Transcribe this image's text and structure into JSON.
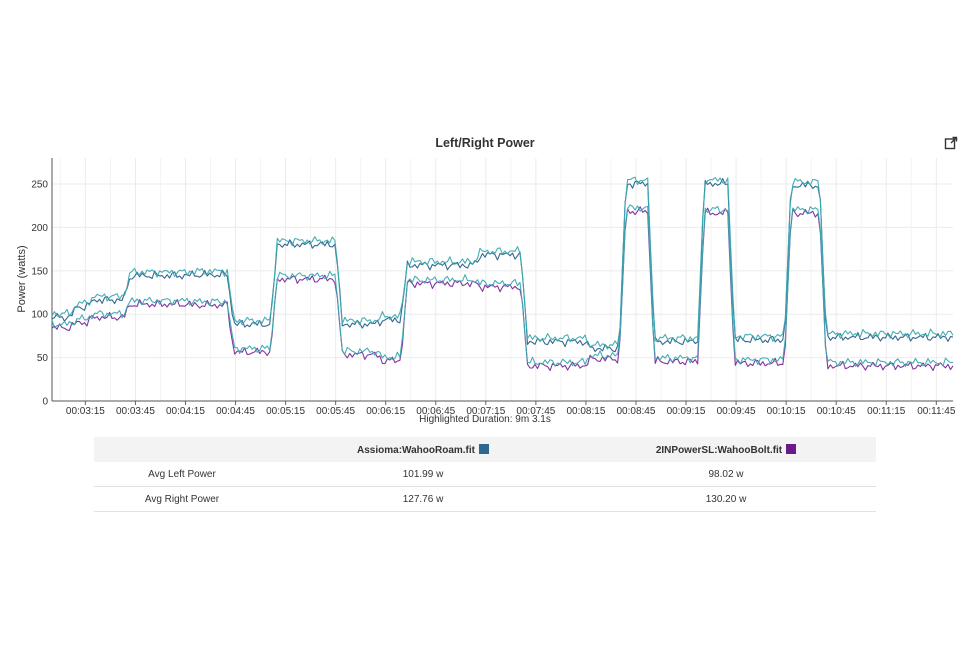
{
  "chart_data": {
    "type": "line",
    "title": "Left/Right Power",
    "ylabel": "Power (watts)",
    "xlabel": "",
    "ylim": [
      0,
      280
    ],
    "yticks": [
      0,
      50,
      100,
      150,
      200,
      250
    ],
    "x_tick_labels": [
      "00:03:15",
      "00:03:45",
      "00:04:15",
      "00:04:45",
      "00:05:15",
      "00:05:45",
      "00:06:15",
      "00:06:45",
      "00:07:15",
      "00:07:45",
      "00:08:15",
      "00:08:45",
      "00:09:15",
      "00:09:45",
      "00:10:15",
      "00:10:45",
      "00:11:15",
      "00:11:45"
    ],
    "x_range_seconds": [
      175,
      715
    ],
    "grid": true,
    "segments": [
      {
        "start": 175,
        "end": 186,
        "high": 98,
        "low": 86
      },
      {
        "start": 186,
        "end": 196,
        "high": 110,
        "low": 92
      },
      {
        "start": 196,
        "end": 218,
        "high": 118,
        "low": 98
      },
      {
        "start": 218,
        "end": 256,
        "high": 146,
        "low": 113
      },
      {
        "start": 256,
        "end": 280,
        "high": 147,
        "low": 112
      },
      {
        "start": 280,
        "end": 306,
        "high": 90,
        "low": 58
      },
      {
        "start": 306,
        "end": 345,
        "high": 182,
        "low": 142
      },
      {
        "start": 345,
        "end": 369,
        "high": 90,
        "low": 55
      },
      {
        "start": 369,
        "end": 384,
        "high": 95,
        "low": 48
      },
      {
        "start": 384,
        "end": 428,
        "high": 158,
        "low": 137
      },
      {
        "start": 428,
        "end": 456,
        "high": 170,
        "low": 133
      },
      {
        "start": 456,
        "end": 494,
        "high": 70,
        "low": 42
      },
      {
        "start": 494,
        "end": 515,
        "high": 62,
        "low": 50
      },
      {
        "start": 515,
        "end": 532,
        "high": 252,
        "low": 220
      },
      {
        "start": 532,
        "end": 562,
        "high": 70,
        "low": 47
      },
      {
        "start": 562,
        "end": 580,
        "high": 252,
        "low": 218
      },
      {
        "start": 580,
        "end": 614,
        "high": 72,
        "low": 45
      },
      {
        "start": 614,
        "end": 635,
        "high": 250,
        "low": 218
      },
      {
        "start": 635,
        "end": 664,
        "high": 75,
        "low": 42
      },
      {
        "start": 664,
        "end": 715,
        "high": 75,
        "low": 42
      }
    ],
    "series": [
      {
        "color": "#2b5f8a",
        "role": "right"
      },
      {
        "color": "#3aaab0",
        "role": "right"
      },
      {
        "color": "#7a2a9a",
        "role": "left"
      },
      {
        "color": "#3aaab0",
        "role": "left"
      }
    ]
  },
  "export_icon": "external-link-icon",
  "duration_label": "Highlighted Duration: 9m 3.1s",
  "table": {
    "headers": [
      "",
      "Assioma:WahooRoam.fit",
      "2INPowerSL:WahooBolt.fit"
    ],
    "swatch_colors": [
      "#2b6a8f",
      "#6a1a8a"
    ],
    "rows": [
      {
        "label": "Avg Left Power",
        "values": [
          "101.99 w",
          "98.02 w"
        ]
      },
      {
        "label": "Avg Right Power",
        "values": [
          "127.76 w",
          "130.20 w"
        ]
      }
    ]
  }
}
